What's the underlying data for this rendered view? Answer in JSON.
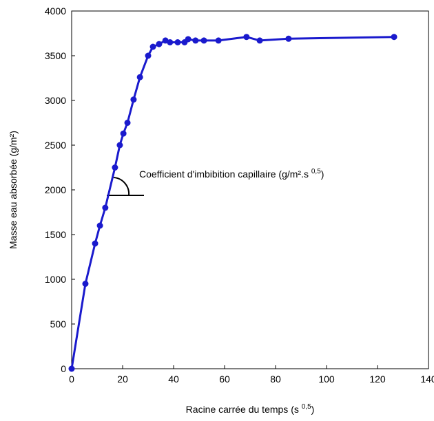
{
  "chart_data": {
    "type": "line",
    "xlabel": [
      "Racine carrée du temps (s ",
      "0,5",
      ")"
    ],
    "ylabel": "Masse eau absorbée (g/m²)",
    "annotation": [
      "Coefficient d'imbibition capillaire (g/m².s ",
      "0,5",
      ")"
    ],
    "xlim": [
      0,
      140
    ],
    "xticks": [
      0,
      20,
      40,
      60,
      80,
      100,
      120,
      140
    ],
    "ylim": [
      0,
      4000
    ],
    "yticks": [
      0,
      500,
      1000,
      1500,
      2000,
      2500,
      3000,
      3500,
      4000
    ],
    "grid": false,
    "series": [
      {
        "color": "#1a1acd",
        "x": [
          0,
          5.4,
          9.2,
          11.1,
          13.2,
          17,
          18.9,
          20.3,
          21.9,
          24.3,
          26.8,
          30,
          31.9,
          34.3,
          36.8,
          38.6,
          41.6,
          44.3,
          45.7,
          48.6,
          51.9,
          57.6,
          68.6,
          73.8,
          85.1,
          126.5
        ],
        "values": [
          0,
          950,
          1400,
          1600,
          1800,
          2250,
          2500,
          2630,
          2750,
          3010,
          3260,
          3500,
          3600,
          3630,
          3670,
          3650,
          3650,
          3650,
          3685,
          3670,
          3670,
          3670,
          3710,
          3670,
          3690,
          3710
        ]
      }
    ]
  }
}
